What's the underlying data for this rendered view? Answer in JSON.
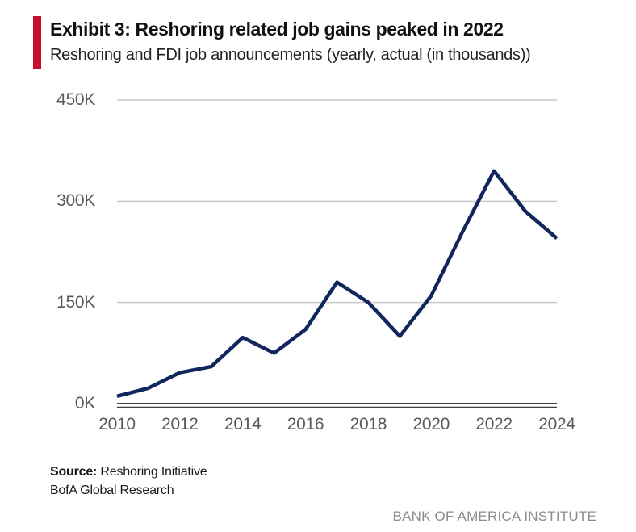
{
  "header": {
    "title": "Exhibit 3: Reshoring related job gains peaked in 2022",
    "subtitle": "Reshoring and FDI job announcements (yearly, actual (in thousands))"
  },
  "footer": {
    "source_label": "Source:",
    "source_value": " Reshoring Initiative",
    "line2": "BofA Global Research",
    "brand": "BANK OF AMERICA INSTITUTE"
  },
  "colors": {
    "accent_red": "#C8102E",
    "line_navy": "#12265E",
    "gridline_gray": "#C9C9C9",
    "axis_dark": "#414141",
    "tick_text_gray": "#595959",
    "title_text": "#111111",
    "brand_gray": "#8C8C8C"
  },
  "chart_data": {
    "type": "line",
    "title": "Exhibit 3: Reshoring related job gains peaked in 2022",
    "subtitle": "Reshoring and FDI job announcements (yearly, actual (in thousands))",
    "x": [
      2010,
      2011,
      2012,
      2013,
      2014,
      2015,
      2016,
      2017,
      2018,
      2019,
      2020,
      2021,
      2022,
      2023,
      2024
    ],
    "series": [
      {
        "name": "Reshoring and FDI job announcements (thousands)",
        "values": [
          11,
          23,
          46,
          55,
          98,
          75,
          110,
          180,
          150,
          100,
          160,
          255,
          345,
          285,
          245
        ]
      }
    ],
    "unit": "thousands of jobs",
    "xlim": [
      2010,
      2024
    ],
    "ylim": [
      0,
      450
    ],
    "yticks": [
      0,
      150,
      300,
      450
    ],
    "ytick_labels": [
      "0K",
      "150K",
      "300K",
      "450K"
    ],
    "xticks": [
      2010,
      2012,
      2014,
      2016,
      2018,
      2020,
      2022,
      2024
    ],
    "grid": "horizontal",
    "legend": "none",
    "line_color": "#12265E"
  }
}
